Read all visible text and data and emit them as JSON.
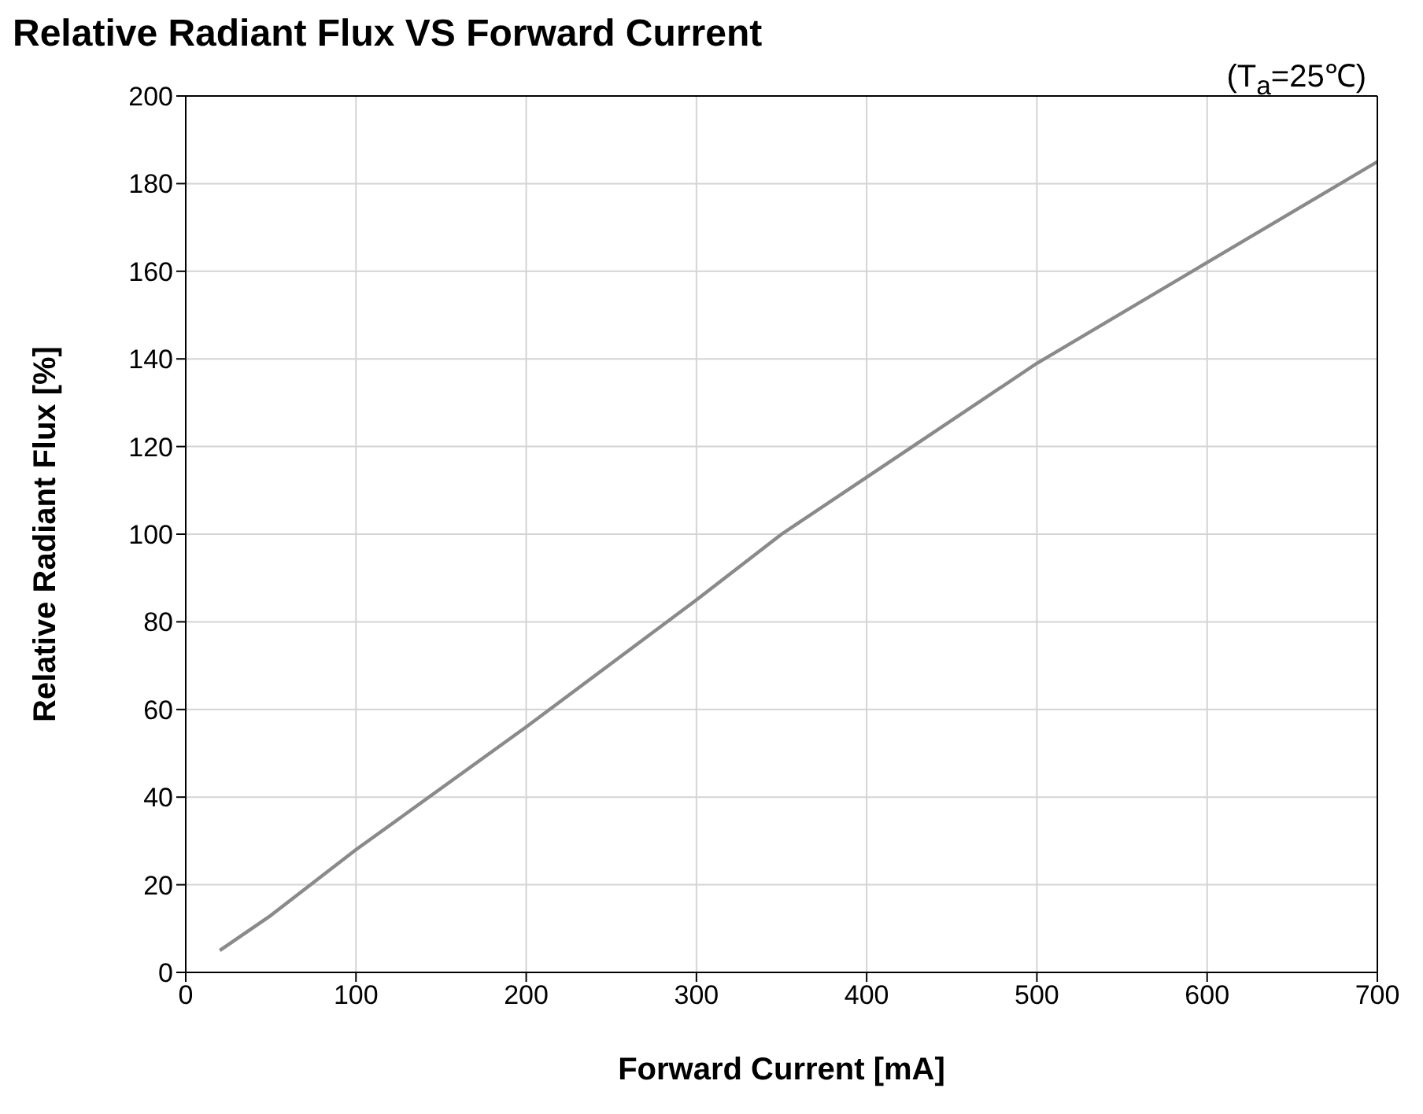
{
  "chart_data": {
    "type": "line",
    "title": "Relative Radiant Flux VS Forward Current",
    "xlabel": "Forward Current [mA]",
    "ylabel": "Relative Radiant Flux [%]",
    "annotations": [
      "(T$_{a}$=25℃)"
    ],
    "x": [
      20,
      50,
      100,
      200,
      300,
      350,
      400,
      500,
      600,
      700
    ],
    "series": [
      {
        "color": "#8a8a8a",
        "values": [
          5,
          13,
          28,
          56,
          85,
          100,
          113,
          139,
          162,
          185
        ]
      }
    ],
    "xlim": [
      0,
      700
    ],
    "xticks": [
      0,
      100,
      200,
      300,
      400,
      500,
      600,
      700
    ],
    "ylim": [
      0,
      200
    ],
    "yticks": [
      0,
      20,
      40,
      60,
      80,
      100,
      120,
      140,
      160,
      180,
      200
    ],
    "grid": true,
    "marker": "none",
    "line_style": "solid"
  }
}
